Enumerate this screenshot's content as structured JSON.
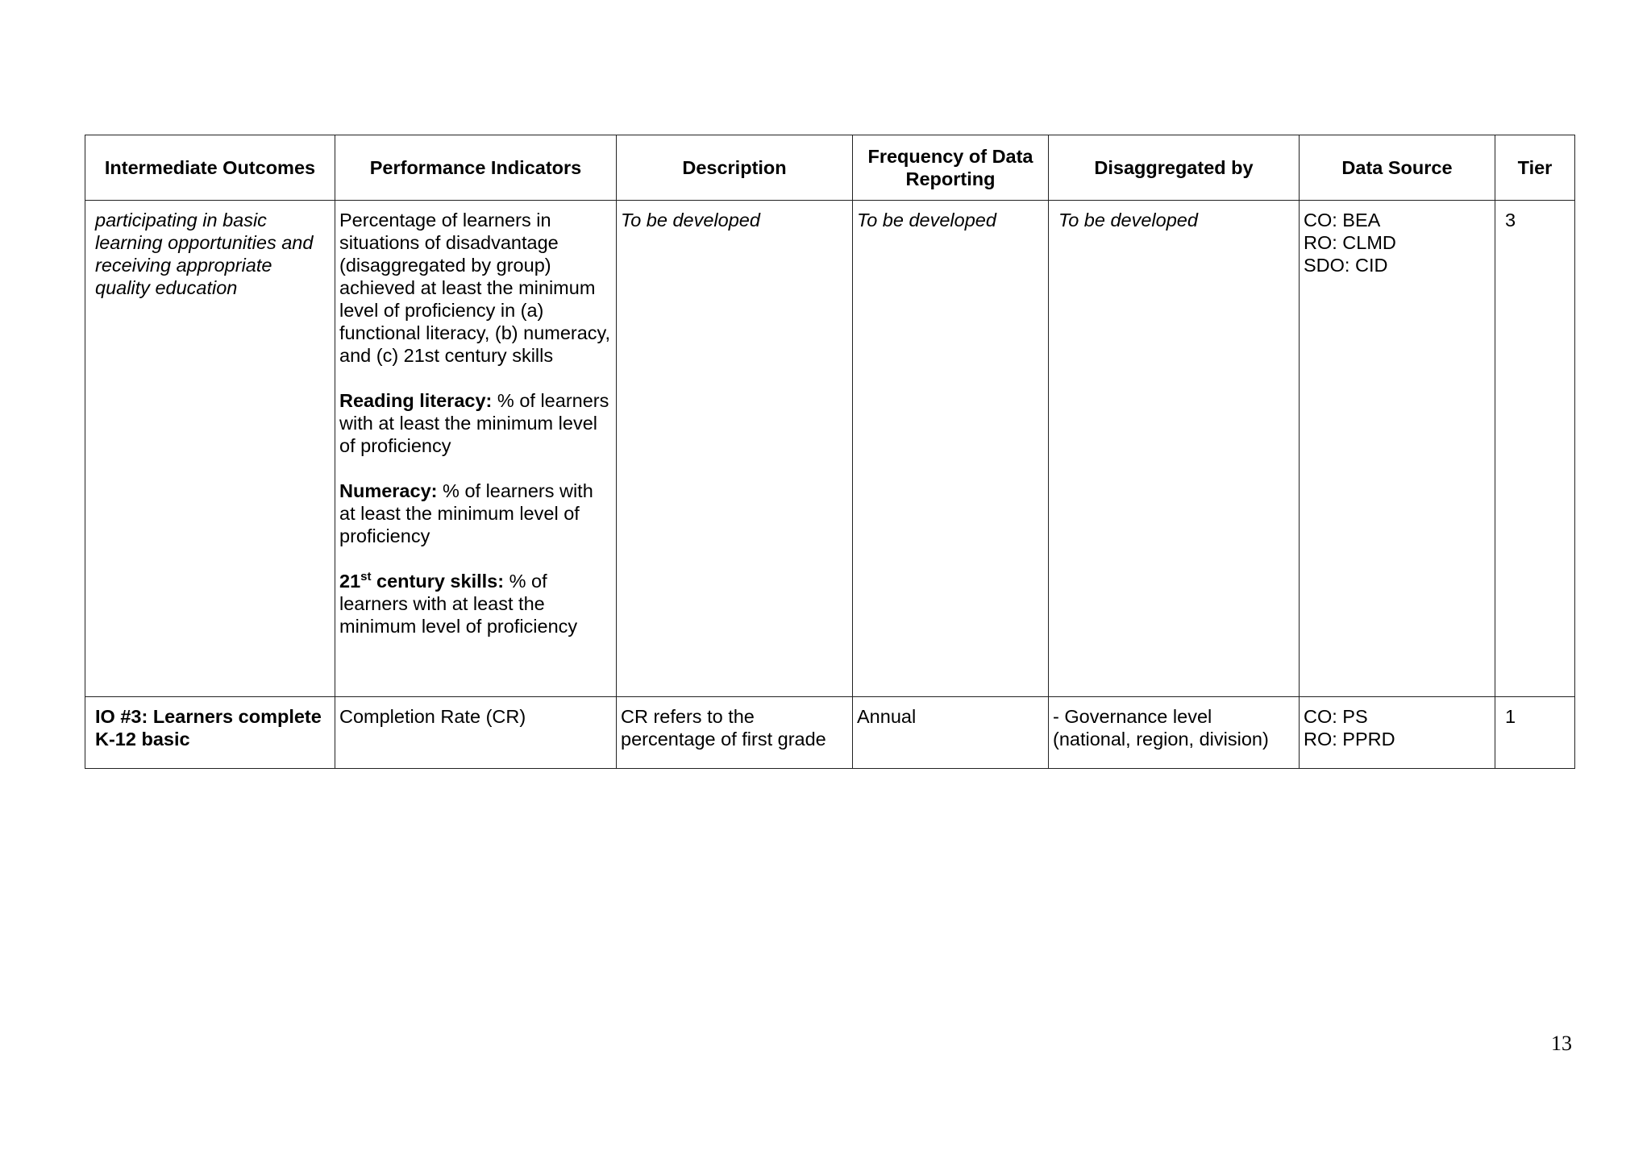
{
  "table": {
    "headers": [
      "Intermediate Outcomes",
      "Performance Indicators",
      "Description",
      "Frequency of Data Reporting",
      "Disaggregated by",
      "Data Source",
      "Tier"
    ],
    "rows": [
      {
        "outcome": "participating in basic learning opportunities and receiving appropriate quality education",
        "indicator_intro": "Percentage of learners in situations of disadvantage (disaggregated by group) achieved at least the minimum level of proficiency in (a) functional literacy, (b) numeracy, and (c) 21st century skills",
        "reading_label": "Reading literacy:",
        "reading_text": " % of learners with at least the minimum level of proficiency",
        "numeracy_label": "Numeracy:",
        "numeracy_text": " % of learners with at least the minimum level of proficiency",
        "skills_label_num": "21",
        "skills_label_sup": "st",
        "skills_label_rest": " century skills:",
        "skills_text": " % of learners with at least the minimum level of proficiency",
        "description": "To be developed",
        "frequency": "To be developed",
        "disaggregated": "To be developed",
        "data_source": [
          "CO: BEA",
          "RO: CLMD",
          "SDO: CID"
        ],
        "tier": "3"
      },
      {
        "outcome": "IO #3: Learners complete K-12 basic",
        "indicator": "Completion Rate (CR)",
        "description": "CR refers to the percentage of first grade",
        "frequency": "Annual",
        "disaggregated": "- Governance level (national, region, division)",
        "data_source": [
          "CO: PS",
          "RO: PPRD"
        ],
        "tier": "1"
      }
    ]
  },
  "page_number": "13"
}
